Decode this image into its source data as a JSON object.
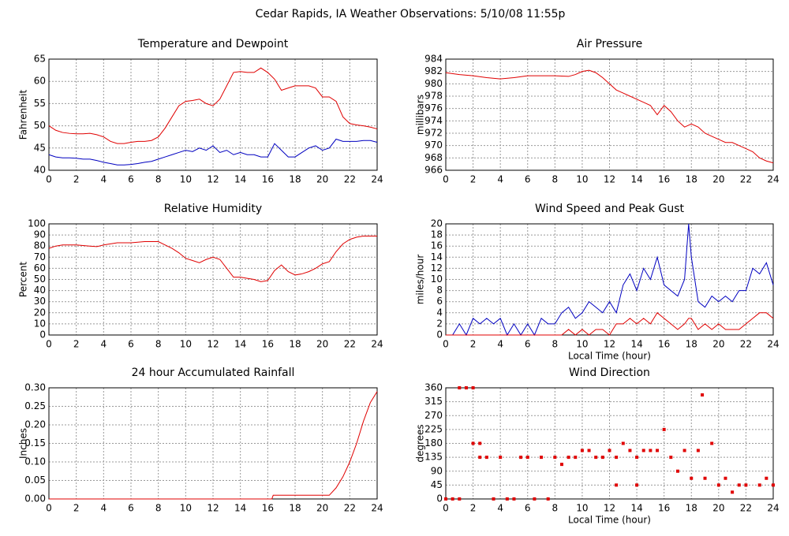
{
  "title": "Cedar Rapids, IA Weather Observations: 5/10/08 11:55p",
  "chart_data": [
    {
      "type": "line",
      "title": "Temperature and Dewpoint",
      "ylabel": "Fahrenheit",
      "x": [
        0,
        0.5,
        1,
        1.5,
        2,
        2.5,
        3,
        3.5,
        4,
        4.5,
        5,
        5.5,
        6,
        6.5,
        7,
        7.5,
        8,
        8.5,
        9,
        9.5,
        10,
        10.5,
        11,
        11.5,
        12,
        12.5,
        13,
        13.5,
        14,
        14.5,
        15,
        15.5,
        16,
        16.5,
        17,
        17.5,
        18,
        18.5,
        19,
        19.5,
        20,
        20.5,
        21,
        21.5,
        22,
        22.5,
        23,
        23.5,
        24
      ],
      "series": [
        {
          "color": "#e00000",
          "values": [
            50,
            49,
            48.5,
            48.3,
            48.2,
            48.2,
            48.3,
            48,
            47.5,
            46.5,
            46,
            46,
            46.3,
            46.5,
            46.5,
            46.7,
            47.5,
            49.5,
            52,
            54.5,
            55.5,
            55.7,
            56,
            55,
            54.5,
            56,
            59,
            62,
            62.2,
            62,
            62,
            63,
            62,
            60.5,
            58,
            58.5,
            59,
            59,
            59,
            58.5,
            56.5,
            56.5,
            55.5,
            52,
            50.5,
            50.2,
            50,
            49.7,
            49.3
          ]
        },
        {
          "color": "#0000c0",
          "values": [
            43.5,
            43,
            42.8,
            42.8,
            42.7,
            42.5,
            42.5,
            42.2,
            41.8,
            41.5,
            41.2,
            41.2,
            41.3,
            41.5,
            41.8,
            42,
            42.5,
            43,
            43.5,
            44,
            44.5,
            44.2,
            45,
            44.5,
            45.5,
            44,
            44.5,
            43.5,
            44,
            43.5,
            43.5,
            43,
            43,
            46,
            44.5,
            43,
            43,
            44,
            45,
            45.5,
            44.5,
            45,
            47,
            46.5,
            46.5,
            46.5,
            46.7,
            46.7,
            46.3
          ]
        }
      ],
      "xlim": [
        0,
        24
      ],
      "ylim": [
        40,
        65
      ],
      "xticks": [
        0,
        2,
        4,
        6,
        8,
        10,
        12,
        14,
        16,
        18,
        20,
        22,
        24
      ],
      "yticks": [
        40,
        45,
        50,
        55,
        60,
        65
      ],
      "grid": true
    },
    {
      "type": "line",
      "title": "Air Pressure",
      "ylabel": "millibars",
      "x": [
        0,
        1,
        2,
        3,
        4,
        5,
        6,
        7,
        8,
        9,
        9.5,
        10,
        10.5,
        11,
        11.5,
        12,
        12.5,
        13,
        13.5,
        14,
        14.5,
        15,
        15.5,
        16,
        16.5,
        17,
        17.5,
        18,
        18.5,
        19,
        19.5,
        20,
        20.5,
        21,
        21.5,
        22,
        22.5,
        23,
        23.5,
        24
      ],
      "series": [
        {
          "color": "#e00000",
          "values": [
            981.8,
            981.5,
            981.3,
            981,
            980.8,
            981,
            981.3,
            981.3,
            981.3,
            981.2,
            981.5,
            982,
            982.2,
            981.8,
            981,
            980,
            979,
            978.5,
            978,
            977.5,
            977,
            976.5,
            975,
            976.5,
            975.5,
            974,
            973,
            973.5,
            973,
            972,
            971.5,
            971,
            970.5,
            970.5,
            970,
            969.5,
            969,
            968,
            967.5,
            967.2
          ]
        }
      ],
      "xlim": [
        0,
        24
      ],
      "ylim": [
        966,
        984
      ],
      "xticks": [
        0,
        2,
        4,
        6,
        8,
        10,
        12,
        14,
        16,
        18,
        20,
        22,
        24
      ],
      "yticks": [
        966,
        968,
        970,
        972,
        974,
        976,
        978,
        980,
        982,
        984
      ],
      "grid": true
    },
    {
      "type": "line",
      "title": "Relative Humidity",
      "ylabel": "Percent",
      "x": [
        0,
        0.5,
        1,
        2,
        3,
        3.5,
        4,
        5,
        6,
        7,
        8,
        8.5,
        9,
        9.5,
        10,
        10.5,
        11,
        11.5,
        12,
        12.5,
        13,
        13.5,
        14,
        14.5,
        15,
        15.5,
        16,
        16.5,
        17,
        17.5,
        18,
        18.5,
        19,
        19.5,
        20,
        20.5,
        21,
        21.5,
        22,
        22.5,
        23,
        23.5,
        24
      ],
      "series": [
        {
          "color": "#e00000",
          "values": [
            78,
            80,
            81,
            81,
            80,
            79.5,
            81,
            83,
            83,
            84,
            84,
            81,
            78,
            74,
            69,
            67,
            65,
            68,
            70,
            68,
            60,
            52,
            52,
            51,
            50,
            48,
            49,
            58,
            63,
            57,
            54,
            55,
            57,
            60,
            64,
            66,
            75,
            82,
            86,
            88,
            89,
            89,
            89
          ]
        }
      ],
      "xlim": [
        0,
        24
      ],
      "ylim": [
        0,
        100
      ],
      "xticks": [
        0,
        2,
        4,
        6,
        8,
        10,
        12,
        14,
        16,
        18,
        20,
        22,
        24
      ],
      "yticks": [
        0,
        10,
        20,
        30,
        40,
        50,
        60,
        70,
        80,
        90,
        100
      ],
      "grid": true
    },
    {
      "type": "line",
      "title": "Wind Speed and Peak Gust",
      "ylabel": "miles/hour",
      "xlabel": "Local Time (hour)",
      "x": [
        0,
        0.5,
        1,
        1.5,
        2,
        2.5,
        3,
        3.5,
        4,
        4.5,
        5,
        5.5,
        6,
        6.5,
        7,
        7.5,
        8,
        8.5,
        9,
        9.5,
        10,
        10.5,
        11,
        11.5,
        12,
        12.5,
        13,
        13.5,
        14,
        14.5,
        15,
        15.5,
        16,
        16.5,
        17,
        17.5,
        17.8,
        18,
        18.5,
        19,
        19.5,
        20,
        20.5,
        21,
        21.5,
        22,
        22.5,
        23,
        23.5,
        24
      ],
      "series": [
        {
          "color": "#0000c0",
          "values": [
            0,
            0,
            2,
            0,
            3,
            2,
            3,
            2,
            3,
            0,
            2,
            0,
            2,
            0,
            3,
            2,
            2,
            4,
            5,
            3,
            4,
            6,
            5,
            4,
            6,
            4,
            9,
            11,
            8,
            12,
            10,
            14,
            9,
            8,
            7,
            10,
            20,
            14,
            6,
            5,
            7,
            6,
            7,
            6,
            8,
            8,
            12,
            11,
            13,
            9
          ]
        },
        {
          "color": "#e00000",
          "values": [
            0,
            0,
            0,
            0,
            0,
            0,
            0,
            0,
            0,
            0,
            0,
            0,
            0,
            0,
            0,
            0,
            0,
            0,
            1,
            0,
            1,
            0,
            1,
            1,
            0,
            2,
            2,
            3,
            2,
            3,
            2,
            4,
            3,
            2,
            1,
            2,
            3,
            3,
            1,
            2,
            1,
            2,
            1,
            1,
            1,
            2,
            3,
            4,
            4,
            3
          ]
        }
      ],
      "xlim": [
        0,
        24
      ],
      "ylim": [
        0,
        20
      ],
      "xticks": [
        0,
        2,
        4,
        6,
        8,
        10,
        12,
        14,
        16,
        18,
        20,
        22,
        24
      ],
      "yticks": [
        0,
        2,
        4,
        6,
        8,
        10,
        12,
        14,
        16,
        18,
        20
      ],
      "grid": true
    },
    {
      "type": "line",
      "title": "24 hour Accumulated Rainfall",
      "ylabel": "Inches",
      "x": [
        0,
        16.3,
        16.4,
        20.5,
        21,
        21.5,
        22,
        22.5,
        23,
        23.5,
        24
      ],
      "series": [
        {
          "color": "#e00000",
          "values": [
            0,
            0,
            0.01,
            0.01,
            0.03,
            0.06,
            0.1,
            0.15,
            0.21,
            0.26,
            0.29
          ]
        }
      ],
      "xlim": [
        0,
        24
      ],
      "ylim": [
        0,
        0.3
      ],
      "xticks": [
        0,
        2,
        4,
        6,
        8,
        10,
        12,
        14,
        16,
        18,
        20,
        22,
        24
      ],
      "yticks": [
        {
          "value": 0,
          "label": "0.00"
        },
        0.05,
        {
          "value": 0.1,
          "label": "0.10"
        },
        0.15,
        {
          "value": 0.2,
          "label": "0.20"
        },
        0.25,
        {
          "value": 0.3,
          "label": "0.30"
        }
      ],
      "grid": true
    },
    {
      "type": "scatter",
      "title": "Wind Direction",
      "ylabel": "degrees",
      "xlabel": "Local Time (hour)",
      "x": [
        0,
        0.5,
        1,
        1,
        1.5,
        2,
        2,
        2.5,
        2.5,
        3,
        3.5,
        4,
        4.5,
        5,
        5.5,
        6,
        6.5,
        7,
        7.5,
        8,
        8.5,
        9,
        9.5,
        10,
        10.5,
        11,
        11.5,
        12,
        12.5,
        12.5,
        13,
        13.5,
        14,
        14,
        14.5,
        15,
        15.5,
        16,
        16.5,
        17,
        17.5,
        18,
        18.5,
        18.8,
        19,
        19.5,
        20,
        20.5,
        21,
        21.5,
        22,
        23,
        23.5,
        24
      ],
      "series": [
        {
          "color": "#e00000",
          "values": [
            0,
            0,
            0,
            360,
            360,
            360,
            180,
            180,
            135,
            135,
            0,
            135,
            0,
            0,
            135,
            135,
            0,
            135,
            0,
            135,
            112,
            135,
            135,
            157,
            157,
            135,
            135,
            157,
            135,
            45,
            180,
            157,
            45,
            135,
            157,
            157,
            157,
            225,
            135,
            90,
            157,
            67,
            157,
            337,
            67,
            180,
            45,
            67,
            22,
            45,
            45,
            45,
            67,
            45
          ]
        }
      ],
      "xlim": [
        0,
        24
      ],
      "ylim": [
        0,
        360
      ],
      "xticks": [
        0,
        2,
        4,
        6,
        8,
        10,
        12,
        14,
        16,
        18,
        20,
        22,
        24
      ],
      "yticks": [
        0,
        45,
        90,
        135,
        180,
        225,
        270,
        315,
        360
      ],
      "grid": true
    }
  ]
}
